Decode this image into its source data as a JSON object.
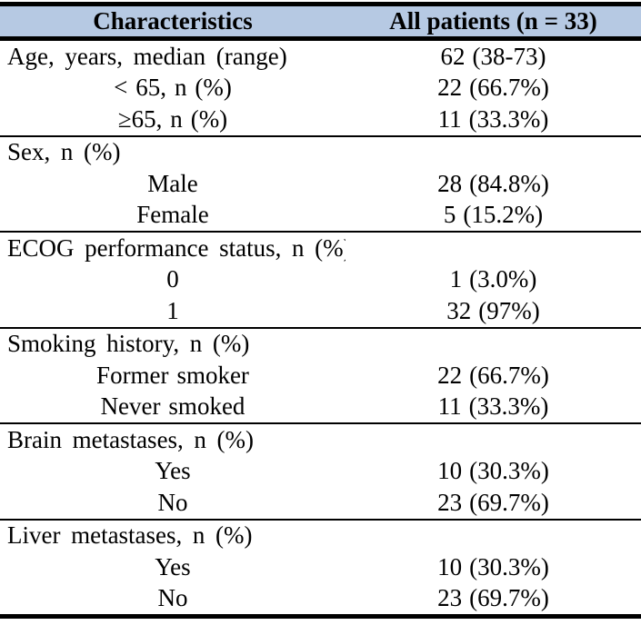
{
  "page": {
    "background": "#ffffff",
    "text_color": "#000000"
  },
  "table": {
    "header": {
      "characteristics_label": "Characteristics",
      "patients_label": "All patients (n = 33)",
      "background": "#B6C9E3",
      "border_color": "#000000"
    },
    "sections": [
      {
        "rows": [
          {
            "label": "Age, years, median (range)",
            "value": "62 (38-73)",
            "indent": false
          },
          {
            "label": "< 65, n (%)",
            "value": "22 (66.7%)",
            "indent": true
          },
          {
            "label": "≥65, n (%)",
            "value": "11 (33.3%)",
            "indent": true
          }
        ]
      },
      {
        "rows": [
          {
            "label": "Sex, n (%)",
            "value": "",
            "indent": false
          },
          {
            "label": "Male",
            "value": "28 (84.8%)",
            "indent": true
          },
          {
            "label": "Female",
            "value": "5 (15.2%)",
            "indent": true
          }
        ]
      },
      {
        "rows": [
          {
            "label": "ECOG performance status, n (%)",
            "value": "",
            "indent": false
          },
          {
            "label": "0",
            "value": "1 (3.0%)",
            "indent": true
          },
          {
            "label": "1",
            "value": "32 (97%)",
            "indent": true
          }
        ]
      },
      {
        "rows": [
          {
            "label": "Smoking history, n (%)",
            "value": "",
            "indent": false
          },
          {
            "label": "Former smoker",
            "value": "22 (66.7%)",
            "indent": true
          },
          {
            "label": "Never smoked",
            "value": "11 (33.3%)",
            "indent": true
          }
        ]
      },
      {
        "rows": [
          {
            "label": "Brain metastases, n (%)",
            "value": "",
            "indent": false
          },
          {
            "label": "Yes",
            "value": "10 (30.3%)",
            "indent": true
          },
          {
            "label": "No",
            "value": "23 (69.7%)",
            "indent": true
          }
        ]
      },
      {
        "rows": [
          {
            "label": "Liver metastases, n (%)",
            "value": "",
            "indent": false
          },
          {
            "label": "Yes",
            "value": "10 (30.3%)",
            "indent": true
          },
          {
            "label": "No",
            "value": "23 (69.7%)",
            "indent": true
          }
        ]
      }
    ]
  }
}
